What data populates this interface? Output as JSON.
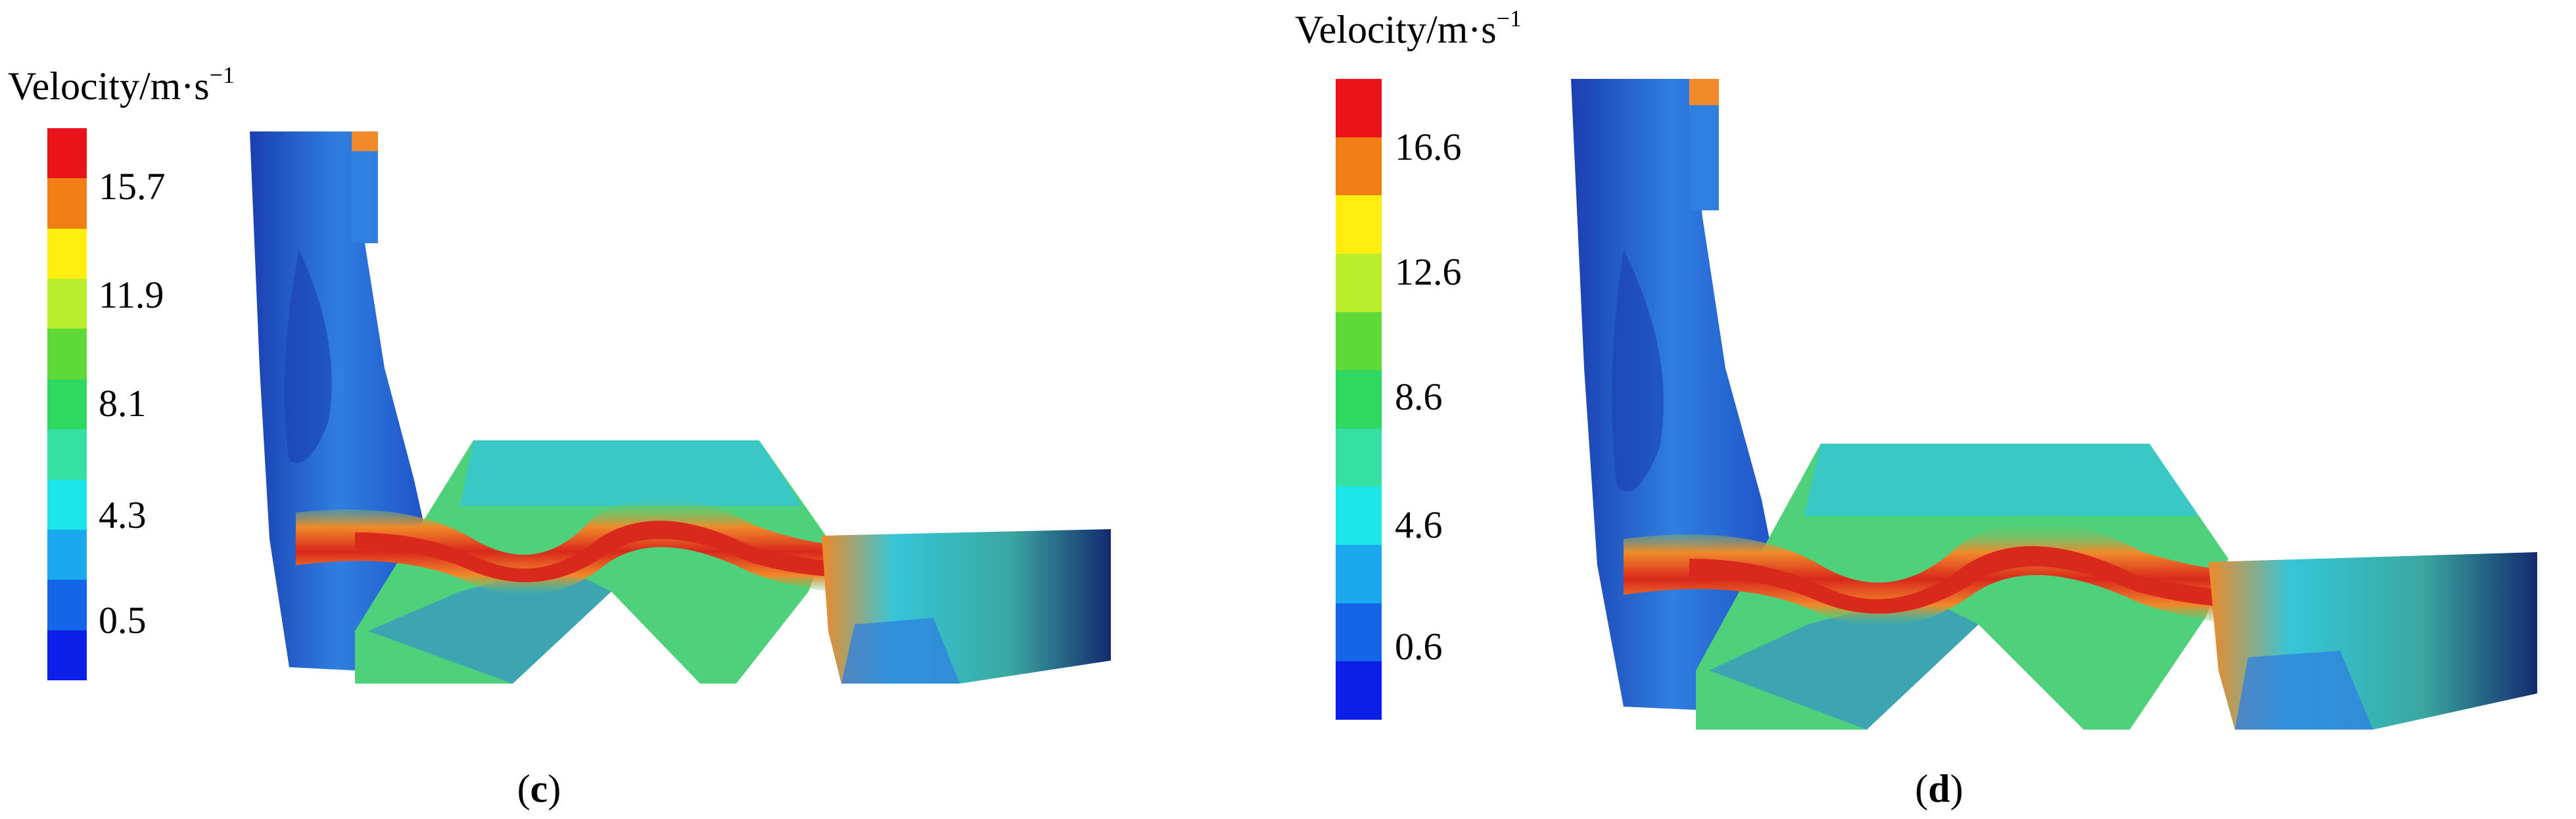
{
  "panels": [
    {
      "id": "c",
      "legend_title": "Velocity/m·s",
      "legend_exponent": "−1",
      "tick_labels": [
        "15.7",
        "11.9",
        "8.1",
        "4.3",
        "0.5"
      ],
      "caption_open": "(",
      "caption_letter": "c",
      "caption_close": ")"
    },
    {
      "id": "d",
      "legend_title": "Velocity/m·s",
      "legend_exponent": "−1",
      "tick_labels": [
        "16.6",
        "12.6",
        "8.6",
        "4.6",
        "0.6"
      ],
      "caption_open": "(",
      "caption_letter": "d",
      "caption_close": ")"
    }
  ],
  "colorscale": [
    "#e8141a",
    "#f27f16",
    "#ffee10",
    "#b9ee2c",
    "#5ed937",
    "#2fd860",
    "#36e0a3",
    "#1ce6e8",
    "#1ba8ee",
    "#1565e8",
    "#0c1fe8"
  ],
  "colors": {
    "deep_blue": "#1a3fb0",
    "mid_blue": "#2f7fe0",
    "cyan": "#35c6d8",
    "green": "#4fd07a",
    "yellow": "#e8e04a",
    "orange": "#f08a2a",
    "red": "#d9281c",
    "dark_edge": "#142a6e"
  }
}
